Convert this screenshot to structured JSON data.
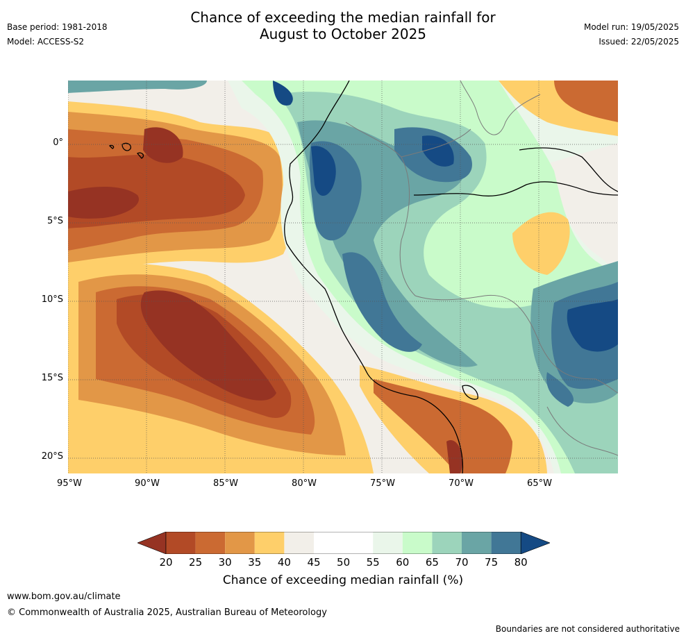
{
  "header": {
    "title_line1": "Chance of exceeding the median rainfall for",
    "title_line2": "August to October 2025",
    "base_period": "Base period: 1981-2018",
    "model": "Model: ACCESS-S2",
    "model_run": "Model run: 19/05/2025",
    "issued": "Issued: 22/05/2025"
  },
  "map": {
    "lat_ticks": [
      "0°",
      "5°S",
      "10°S",
      "15°S",
      "20°S"
    ],
    "lon_ticks": [
      "95°W",
      "90°W",
      "85°W",
      "80°W",
      "75°W",
      "70°W",
      "65°W"
    ],
    "colors": {
      "p20": "#963323",
      "p25": "#b24a26",
      "p30": "#cb6a32",
      "p35": "#e29747",
      "p40": "#fecf6a",
      "p45": "#f2efe9",
      "p50": "#ffffff",
      "p55": "#ffffff",
      "p60": "#eaf6ea",
      "p65": "#c9fbca",
      "p70": "#9cd4bb",
      "p75": "#6aa5a5",
      "p80": "#417796",
      "p85": "#154a84"
    }
  },
  "colorbar": {
    "labels": [
      "20",
      "25",
      "30",
      "35",
      "40",
      "45",
      "50",
      "55",
      "60",
      "65",
      "70",
      "75",
      "80"
    ],
    "title": "Chance of exceeding median rainfall (%)"
  },
  "footer": {
    "url": "www.bom.gov.au/climate",
    "copyright": "© Commonwealth of Australia 2025, Australian Bureau of Meteorology",
    "disclaimer": "Boundaries are not considered authoritative"
  }
}
